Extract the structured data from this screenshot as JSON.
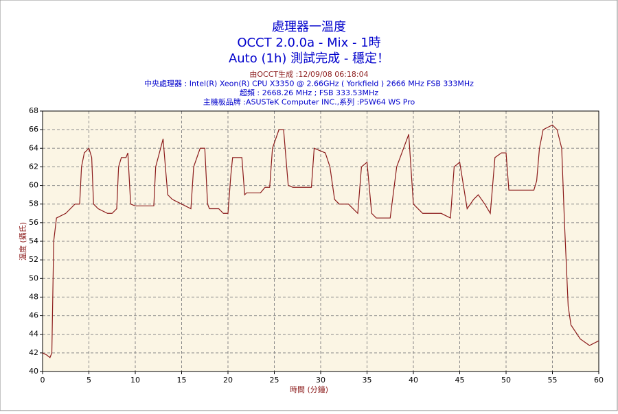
{
  "chart_data": {
    "type": "line",
    "title": "處理器一溫度",
    "subtitle": "OCCT 2.0.0a - Mix - 1時",
    "status": "Auto (1h) 測試完成 - 穩定！",
    "info_lines": [
      "由OCCT生成 :12/09/08 06:18:04",
      "中央處理器 : Intel(R) Xeon(R) CPU X3350 @ 2.66GHz ( Yorkfield ) 2666 MHz FSB 333MHz",
      "超頻 : 2668.26 MHz ; FSB 333.53MHz",
      "主機板品牌 :ASUSTeK Computer INC.,系列 :P5W64 WS Pro"
    ],
    "x_label": "時間 (分鐘)",
    "y_label": "溫度 (攝氏)",
    "xlim": [
      0,
      60
    ],
    "xticks": [
      0,
      5,
      10,
      15,
      20,
      25,
      30,
      35,
      40,
      45,
      50,
      55,
      60
    ],
    "ylim": [
      40,
      68
    ],
    "yticks": [
      40,
      42,
      44,
      46,
      48,
      50,
      52,
      54,
      56,
      58,
      60,
      62,
      64,
      66,
      68
    ],
    "grid": true,
    "series": [
      {
        "name": "溫度",
        "color": "#8b1a1a",
        "x": [
          0,
          0.4,
          0.8,
          1.0,
          1.2,
          1.5,
          2.5,
          3,
          3.5,
          4.0,
          4.2,
          4.5,
          5,
          5.3,
          5.5,
          6,
          7,
          7.5,
          8,
          8.2,
          8.5,
          9,
          9.2,
          9.5,
          10,
          12,
          12.2,
          13,
          13.5,
          14,
          15,
          16,
          16.3,
          17,
          17.5,
          17.8,
          18,
          19,
          19.5,
          20,
          20.3,
          20.5,
          21.5,
          21.8,
          22,
          23.5,
          24,
          24.5,
          24.8,
          25.5,
          26,
          26.5,
          27,
          29,
          29.3,
          30.5,
          31,
          31.5,
          32,
          33,
          34,
          34.4,
          35,
          35.5,
          36,
          37.5,
          38.2,
          39.5,
          40,
          41,
          43,
          44,
          44.4,
          45,
          45.8,
          46.5,
          47,
          47.7,
          48.3,
          48.8,
          49.5,
          50,
          50.3,
          51,
          53,
          53.3,
          53.6,
          54,
          55,
          55.5,
          56,
          56.3,
          56.7,
          57,
          58,
          59,
          60
        ],
        "values": [
          42,
          41.8,
          41.5,
          42,
          54,
          56.5,
          57,
          57.5,
          58,
          58,
          62,
          63.5,
          64,
          63,
          58,
          57.5,
          57,
          57,
          57.5,
          62,
          63,
          63,
          63.5,
          58,
          57.8,
          57.8,
          62,
          65,
          59,
          58.5,
          58,
          57.5,
          62,
          64,
          64,
          58,
          57.5,
          57.5,
          57,
          57,
          61,
          63,
          63,
          59,
          59.2,
          59.2,
          59.8,
          59.8,
          64,
          66,
          66,
          60,
          59.8,
          59.8,
          64,
          63.5,
          62,
          58.5,
          58,
          58,
          57,
          62,
          62.5,
          57,
          56.5,
          56.5,
          62,
          65.5,
          58,
          57,
          57,
          56.5,
          62,
          62.5,
          57.5,
          58.5,
          59,
          58,
          57,
          63,
          63.5,
          63.5,
          59.5,
          59.5,
          59.5,
          60.5,
          64,
          66,
          66.5,
          66,
          64,
          56,
          47,
          45,
          43.5,
          42.8,
          43.3
        ]
      }
    ]
  }
}
